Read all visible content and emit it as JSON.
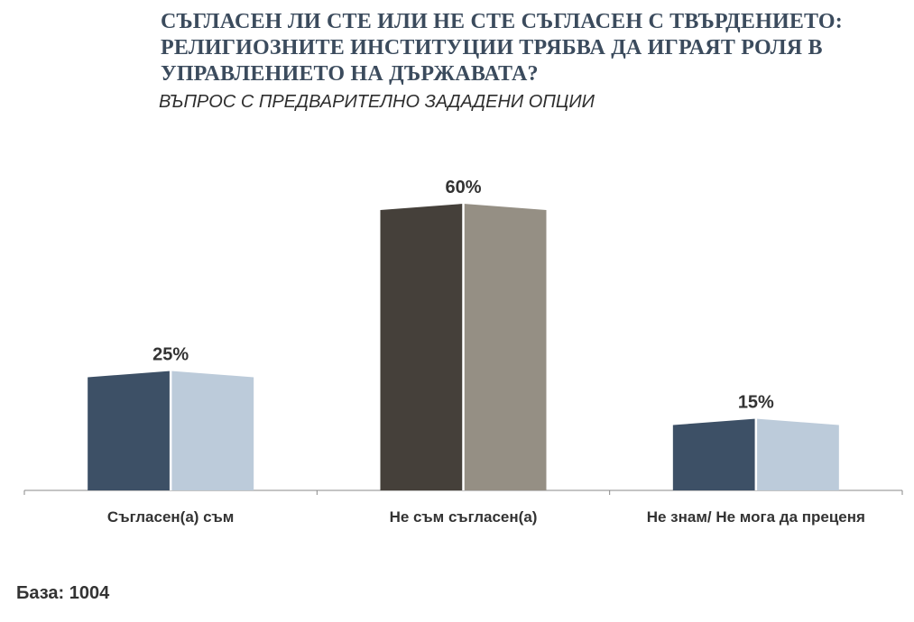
{
  "title": "Съгласен ли сте или не сте съгласен с твърдението: Религиозните институции трябва да играят роля в управлението на държавата?",
  "subtitle": "ВЪПРОС С ПРЕДВАРИТЕЛНО ЗАДАДЕНИ ОПЦИИ",
  "base_text": "База: 1004",
  "chart_data": {
    "type": "bar",
    "categories": [
      "Съгласен(а) съм",
      "Не съм съгласен(а)",
      "Не знам/ Не мога да преценя"
    ],
    "values": [
      25,
      60,
      15
    ],
    "value_labels": [
      "25%",
      "60%",
      "15%"
    ],
    "ylim": [
      0,
      70
    ],
    "grid": false,
    "legend": "none",
    "colors": [
      {
        "dark": "#3d5066",
        "light": "#bccbda"
      },
      {
        "dark": "#45403a",
        "light": "#958f84"
      },
      {
        "dark": "#3d5066",
        "light": "#bccbda"
      }
    ],
    "axis_color": "#888888",
    "label_color": "#333333"
  }
}
